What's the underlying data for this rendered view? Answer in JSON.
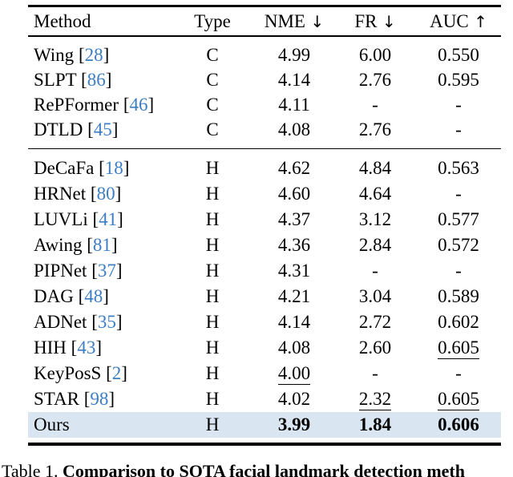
{
  "colors": {
    "citation_blue": "#3c7dc4",
    "highlight_row": "#d9e6f2",
    "text": "#000000"
  },
  "header": {
    "columns": [
      {
        "id": "method",
        "label": "Method",
        "arrow": ""
      },
      {
        "id": "type",
        "label": "Type",
        "arrow": ""
      },
      {
        "id": "nme",
        "label": "NME",
        "arrow": "↓"
      },
      {
        "id": "fr",
        "label": "FR",
        "arrow": "↓"
      },
      {
        "id": "auc",
        "label": "AUC",
        "arrow": "↑"
      }
    ]
  },
  "groups": [
    {
      "rows": [
        {
          "method": "Wing",
          "cite": "28",
          "type": "C",
          "nme": "4.99",
          "fr": "6.00",
          "auc": "0.550"
        },
        {
          "method": "SLPT",
          "cite": "86",
          "type": "C",
          "nme": "4.14",
          "fr": "2.76",
          "auc": "0.595"
        },
        {
          "method": "RePFormer",
          "cite": "46",
          "type": "C",
          "nme": "4.11",
          "fr": "-",
          "auc": "-"
        },
        {
          "method": "DTLD",
          "cite": "45",
          "type": "C",
          "nme": "4.08",
          "fr": "2.76",
          "auc": "-"
        }
      ]
    },
    {
      "rows": [
        {
          "method": "DeCaFa",
          "cite": "18",
          "type": "H",
          "nme": "4.62",
          "fr": "4.84",
          "auc": "0.563"
        },
        {
          "method": "HRNet",
          "cite": "80",
          "type": "H",
          "nme": "4.60",
          "fr": "4.64",
          "auc": "-"
        },
        {
          "method": "LUVLi",
          "cite": "41",
          "type": "H",
          "nme": "4.37",
          "fr": "3.12",
          "auc": "0.577"
        },
        {
          "method": "Awing",
          "cite": "81",
          "type": "H",
          "nme": "4.36",
          "fr": "2.84",
          "auc": "0.572"
        },
        {
          "method": "PIPNet",
          "cite": "37",
          "type": "H",
          "nme": "4.31",
          "fr": "-",
          "auc": "-"
        },
        {
          "method": "DAG",
          "cite": "48",
          "type": "H",
          "nme": "4.21",
          "fr": "3.04",
          "auc": "0.589"
        },
        {
          "method": "ADNet",
          "cite": "35",
          "type": "H",
          "nme": "4.14",
          "fr": "2.72",
          "auc": "0.602"
        },
        {
          "method": "HIH",
          "cite": "43",
          "type": "H",
          "nme": "4.08",
          "fr": "2.60",
          "auc": "0.605",
          "underline": [
            "auc"
          ]
        },
        {
          "method": "KeyPosS",
          "cite": "2",
          "type": "H",
          "nme": "4.00",
          "fr": "-",
          "auc": "-",
          "underline": [
            "nme"
          ]
        },
        {
          "method": "STAR",
          "cite": "98",
          "type": "H",
          "nme": "4.02",
          "fr": "2.32",
          "auc": "0.605",
          "underline": [
            "fr",
            "auc"
          ]
        },
        {
          "method": "Ours",
          "cite": "",
          "type": "H",
          "nme": "3.99",
          "fr": "1.84",
          "auc": "0.606",
          "bold": [
            "nme",
            "fr",
            "auc"
          ],
          "highlight": true
        }
      ]
    }
  ],
  "caption": {
    "label": "Table 1.",
    "text": "Comparison to SOTA facial landmark detection meth"
  }
}
